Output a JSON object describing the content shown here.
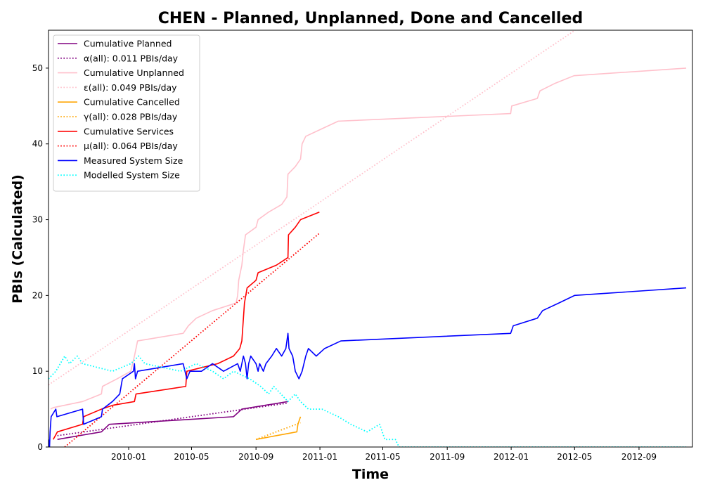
{
  "chart_data": {
    "type": "line",
    "title": "CHEN - Planned, Unplanned, Done  and Cancelled",
    "xlabel": "Time",
    "ylabel": "PBIs (Calculated)",
    "xlim": [
      "2009-08-01",
      "2012-12-12"
    ],
    "ylim": [
      0,
      55
    ],
    "xticks": [
      "2010-01",
      "2010-05",
      "2010-09",
      "2011-01",
      "2011-05",
      "2011-09",
      "2012-01",
      "2012-05",
      "2012-09"
    ],
    "yticks": [
      0,
      10,
      20,
      30,
      40,
      50
    ],
    "grid": false,
    "legend_position": "top-left",
    "series": [
      {
        "name": "Cumulative Planned",
        "style": "solid",
        "color": "#800080",
        "points": [
          [
            "2009-08-18",
            1
          ],
          [
            "2009-11-10",
            2
          ],
          [
            "2009-11-25",
            3
          ],
          [
            "2010-07-20",
            4
          ],
          [
            "2010-08-05",
            5
          ],
          [
            "2010-11-01",
            6
          ]
        ]
      },
      {
        "name": "α(all): 0.011 PBIs/day",
        "style": "dotted",
        "color": "#800080",
        "points": [
          [
            "2009-08-18",
            1.5
          ],
          [
            "2010-11-01",
            5.8
          ]
        ]
      },
      {
        "name": "Cumulative Unplanned",
        "style": "solid",
        "color": "#ffc0cb",
        "points": [
          [
            "2009-08-05",
            5
          ],
          [
            "2009-08-10",
            5.2
          ],
          [
            "2009-10-05",
            6
          ],
          [
            "2009-11-10",
            7
          ],
          [
            "2009-11-12",
            8
          ],
          [
            "2009-12-10",
            9
          ],
          [
            "2010-01-05",
            10
          ],
          [
            "2010-01-12",
            12
          ],
          [
            "2010-01-18",
            14
          ],
          [
            "2010-04-15",
            15
          ],
          [
            "2010-04-25",
            16
          ],
          [
            "2010-05-10",
            17
          ],
          [
            "2010-06-10",
            18
          ],
          [
            "2010-07-25",
            19
          ],
          [
            "2010-07-28",
            20
          ],
          [
            "2010-07-30",
            22
          ],
          [
            "2010-08-05",
            24
          ],
          [
            "2010-08-08",
            26
          ],
          [
            "2010-08-12",
            28
          ],
          [
            "2010-09-01",
            29
          ],
          [
            "2010-09-05",
            30
          ],
          [
            "2010-09-25",
            31
          ],
          [
            "2010-10-20",
            32
          ],
          [
            "2010-10-30",
            33
          ],
          [
            "2010-11-01",
            36
          ],
          [
            "2010-11-15",
            37
          ],
          [
            "2010-11-25",
            38
          ],
          [
            "2010-11-28",
            40
          ],
          [
            "2010-12-05",
            41
          ],
          [
            "2011-01-05",
            42
          ],
          [
            "2011-02-05",
            43
          ],
          [
            "2011-12-31",
            44
          ],
          [
            "2012-01-02",
            45
          ],
          [
            "2012-02-20",
            46
          ],
          [
            "2012-02-25",
            47
          ],
          [
            "2012-03-25",
            48
          ],
          [
            "2012-04-30",
            49
          ],
          [
            "2012-11-30",
            50
          ]
        ]
      },
      {
        "name": "ε(all): 0.049 PBIs/day",
        "style": "dotted",
        "color": "#ffc0cb",
        "points": [
          [
            "2009-08-01",
            8.2
          ],
          [
            "2012-05-02",
            55
          ]
        ]
      },
      {
        "name": "Cumulative Cancelled",
        "style": "solid",
        "color": "#ffa500",
        "points": [
          [
            "2010-09-01",
            1
          ],
          [
            "2010-11-18",
            2
          ],
          [
            "2010-11-20",
            3
          ],
          [
            "2010-11-25",
            4
          ]
        ]
      },
      {
        "name": "γ(all): 0.028 PBIs/day",
        "style": "dotted",
        "color": "#ffa500",
        "points": [
          [
            "2010-09-01",
            1
          ],
          [
            "2010-11-25",
            3.2
          ]
        ]
      },
      {
        "name": "Cumulative Services",
        "style": "solid",
        "color": "#ff0000",
        "points": [
          [
            "2009-08-10",
            1
          ],
          [
            "2009-08-18",
            2
          ],
          [
            "2009-10-05",
            3
          ],
          [
            "2009-10-07",
            4
          ],
          [
            "2009-11-10",
            5
          ],
          [
            "2009-12-01",
            5.5
          ],
          [
            "2010-01-12",
            6
          ],
          [
            "2010-01-15",
            7
          ],
          [
            "2010-04-20",
            8
          ],
          [
            "2010-04-22",
            10
          ],
          [
            "2010-06-20",
            11
          ],
          [
            "2010-07-20",
            12
          ],
          [
            "2010-08-01",
            13
          ],
          [
            "2010-08-05",
            14
          ],
          [
            "2010-08-08",
            17
          ],
          [
            "2010-08-10",
            19
          ],
          [
            "2010-08-15",
            21
          ],
          [
            "2010-09-01",
            22
          ],
          [
            "2010-09-05",
            23
          ],
          [
            "2010-10-10",
            24
          ],
          [
            "2010-11-01",
            25
          ],
          [
            "2010-11-02",
            28
          ],
          [
            "2010-11-15",
            29
          ],
          [
            "2010-11-25",
            30
          ],
          [
            "2010-12-31",
            31
          ]
        ]
      },
      {
        "name": "μ(all): 0.064 PBIs/day",
        "style": "dotted",
        "color": "#ff0000",
        "points": [
          [
            "2009-09-01",
            0
          ],
          [
            "2010-12-31",
            28.2
          ]
        ]
      },
      {
        "name": "Measured System Size",
        "style": "solid",
        "color": "#0000ff",
        "points": [
          [
            "2009-08-01",
            1
          ],
          [
            "2009-08-03",
            0
          ],
          [
            "2009-08-04",
            2
          ],
          [
            "2009-08-06",
            4
          ],
          [
            "2009-08-15",
            5
          ],
          [
            "2009-08-17",
            4
          ],
          [
            "2009-10-05",
            5
          ],
          [
            "2009-10-07",
            3
          ],
          [
            "2009-11-10",
            4
          ],
          [
            "2009-11-12",
            5
          ],
          [
            "2009-12-01",
            6
          ],
          [
            "2009-12-15",
            7
          ],
          [
            "2009-12-20",
            9
          ],
          [
            "2010-01-10",
            10
          ],
          [
            "2010-01-12",
            11
          ],
          [
            "2010-01-14",
            9
          ],
          [
            "2010-01-18",
            10
          ],
          [
            "2010-04-15",
            11
          ],
          [
            "2010-04-22",
            9
          ],
          [
            "2010-04-28",
            10
          ],
          [
            "2010-05-20",
            10
          ],
          [
            "2010-06-10",
            11
          ],
          [
            "2010-07-01",
            10
          ],
          [
            "2010-07-28",
            11
          ],
          [
            "2010-08-02",
            10
          ],
          [
            "2010-08-05",
            11
          ],
          [
            "2010-08-08",
            12
          ],
          [
            "2010-08-12",
            11
          ],
          [
            "2010-08-15",
            9
          ],
          [
            "2010-08-18",
            11
          ],
          [
            "2010-08-22",
            12
          ],
          [
            "2010-09-01",
            11
          ],
          [
            "2010-09-05",
            10
          ],
          [
            "2010-09-08",
            11
          ],
          [
            "2010-09-15",
            10
          ],
          [
            "2010-09-20",
            11
          ],
          [
            "2010-10-01",
            12
          ],
          [
            "2010-10-10",
            13
          ],
          [
            "2010-10-20",
            12
          ],
          [
            "2010-10-28",
            13
          ],
          [
            "2010-11-01",
            15
          ],
          [
            "2010-11-03",
            13
          ],
          [
            "2010-11-10",
            12
          ],
          [
            "2010-11-15",
            10
          ],
          [
            "2010-11-22",
            9
          ],
          [
            "2010-11-28",
            10
          ],
          [
            "2010-12-05",
            12
          ],
          [
            "2010-12-10",
            13
          ],
          [
            "2010-12-25",
            12
          ],
          [
            "2011-01-10",
            13
          ],
          [
            "2011-02-10",
            14
          ],
          [
            "2011-12-31",
            15
          ],
          [
            "2012-01-05",
            16
          ],
          [
            "2012-02-20",
            17
          ],
          [
            "2012-03-01",
            18
          ],
          [
            "2012-04-01",
            19
          ],
          [
            "2012-05-01",
            20
          ],
          [
            "2012-11-30",
            21
          ]
        ]
      },
      {
        "name": "Modelled System Size",
        "style": "dotted",
        "color": "#00ffff",
        "points": [
          [
            "2009-08-01",
            9
          ],
          [
            "2009-08-15",
            10
          ],
          [
            "2009-09-01",
            12
          ],
          [
            "2009-09-10",
            11
          ],
          [
            "2009-09-25",
            12
          ],
          [
            "2009-10-05",
            11
          ],
          [
            "2009-12-01",
            10
          ],
          [
            "2010-01-05",
            11
          ],
          [
            "2010-01-20",
            12
          ],
          [
            "2010-02-01",
            11
          ],
          [
            "2010-04-10",
            10
          ],
          [
            "2010-05-10",
            11
          ],
          [
            "2010-06-10",
            10
          ],
          [
            "2010-07-01",
            9
          ],
          [
            "2010-07-20",
            10
          ],
          [
            "2010-08-20",
            9
          ],
          [
            "2010-09-10",
            8
          ],
          [
            "2010-09-25",
            7
          ],
          [
            "2010-10-05",
            8
          ],
          [
            "2010-11-01",
            6
          ],
          [
            "2010-11-15",
            7
          ],
          [
            "2010-11-25",
            6
          ],
          [
            "2010-12-10",
            5
          ],
          [
            "2011-01-05",
            5
          ],
          [
            "2011-02-05",
            4
          ],
          [
            "2011-03-01",
            3
          ],
          [
            "2011-04-01",
            2
          ],
          [
            "2011-04-25",
            3
          ],
          [
            "2011-05-05",
            1
          ],
          [
            "2011-05-25",
            1
          ],
          [
            "2011-06-01",
            0
          ],
          [
            "2012-11-30",
            0
          ]
        ]
      }
    ]
  }
}
